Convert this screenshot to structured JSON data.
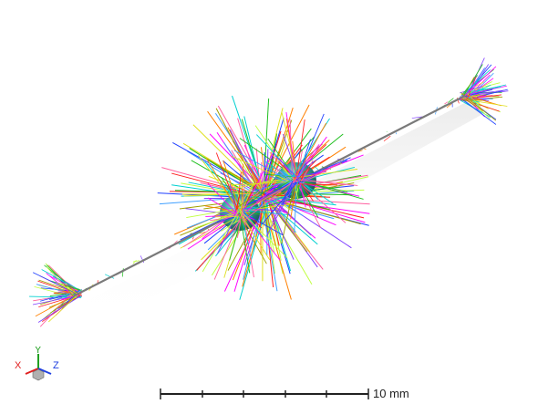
{
  "scale_bar": {
    "label": "10 mm"
  },
  "axis_triad": {
    "x_label": "X",
    "y_label": "Y",
    "z_label": "Z",
    "x_color": "#e02020",
    "y_color": "#20a020",
    "z_color": "#2040e0"
  },
  "scene": {
    "object": "fiber-with-two-beads",
    "fiber_color": "#7a7a7a",
    "bead_color": "#3aa7a0",
    "strand_palette": [
      "#ff2020",
      "#20c020",
      "#2040ff",
      "#e0e020",
      "#ff00ff",
      "#00d0d0",
      "#ff8000",
      "#8040ff",
      "#c0ff40",
      "#ff60a0",
      "#40a0ff",
      "#a0a000"
    ]
  }
}
